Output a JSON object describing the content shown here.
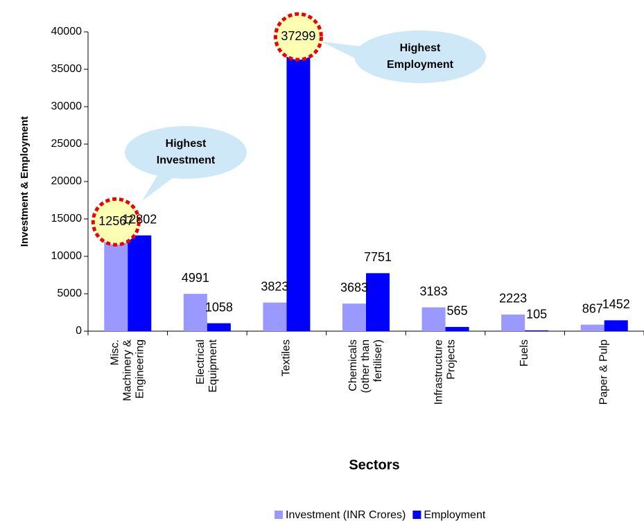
{
  "chart_data": {
    "type": "bar",
    "xlabel": "Sectors",
    "ylabel": "Investment & Employment",
    "categories": [
      "Misc. Machinery & Engineering",
      "Electrical Equipment",
      "Textiles",
      "Chemicals (other than fertiliser)",
      "Infrastructure Projects",
      "Fuels",
      "Paper & Pulp"
    ],
    "series": [
      {
        "name": "Investment (INR Crores)",
        "color": "#9999ff",
        "values": [
          12567,
          4991,
          3823,
          3683,
          3183,
          2223,
          867
        ]
      },
      {
        "name": "Employment",
        "color": "#0000ff",
        "values": [
          12802,
          1058,
          37299,
          7751,
          565,
          105,
          1452
        ]
      }
    ],
    "ylim": [
      0,
      40000
    ],
    "yticks": [
      0,
      5000,
      10000,
      15000,
      20000,
      25000,
      30000,
      35000,
      40000
    ],
    "grid": false,
    "legend": "bottom",
    "annotations": [
      "Highest Investment",
      "Highest Employment"
    ]
  }
}
